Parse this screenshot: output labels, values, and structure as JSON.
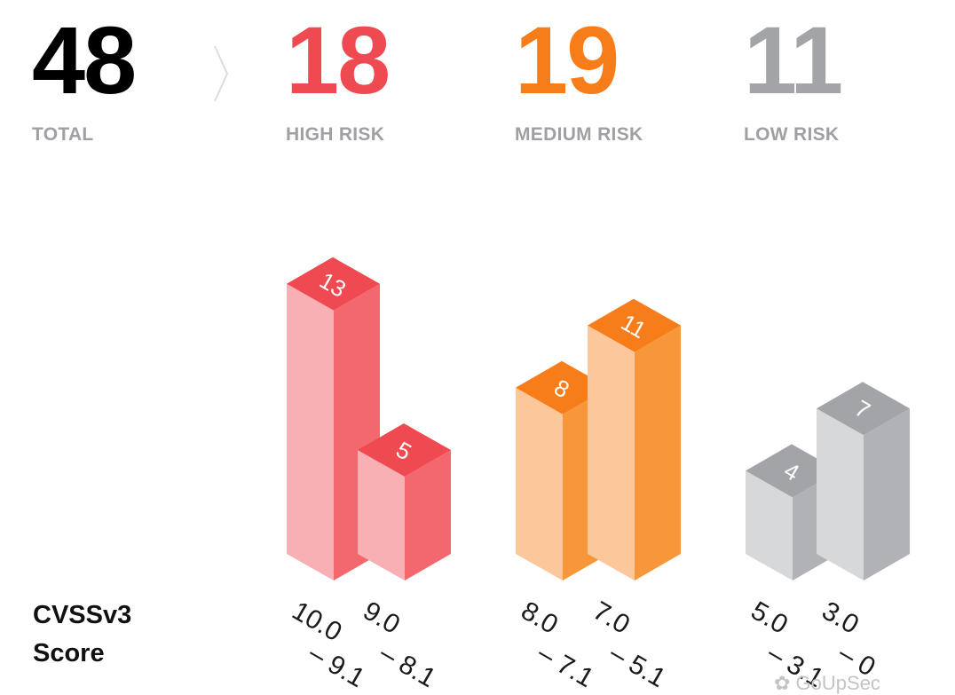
{
  "summary": {
    "total": {
      "value": "48",
      "label": "TOTAL",
      "color": "#000000"
    },
    "high": {
      "value": "18",
      "label": "HIGH RISK",
      "color": "#ef4a52"
    },
    "medium": {
      "value": "19",
      "label": "MEDIUM RISK",
      "color": "#f77d1a"
    },
    "low": {
      "value": "11",
      "label": "LOW RISK",
      "color": "#a3a4a8"
    }
  },
  "axis_label": {
    "line1": "CVSSv3",
    "line2": "Score"
  },
  "watermark": "GoUpSec",
  "chart_data": {
    "type": "bar",
    "style": "isometric-3d",
    "categories": [
      "10.0 – 9.1",
      "9.0 – 8.1",
      "8.0 – 7.1",
      "7.0 – 5.1",
      "5.0 – 3.1",
      "3.0 – 0"
    ],
    "values": [
      13,
      5,
      8,
      11,
      4,
      7
    ],
    "data_labels": [
      "13",
      "5",
      "8",
      "11",
      "4",
      "7"
    ],
    "groups": [
      {
        "name": "HIGH RISK",
        "indices": [
          0,
          1
        ],
        "colors": {
          "top": "#ef4a52",
          "front": "#f8b0b4",
          "side": "#f3686e"
        }
      },
      {
        "name": "MEDIUM RISK",
        "indices": [
          2,
          3
        ],
        "colors": {
          "top": "#f77d1a",
          "front": "#fcc89b",
          "side": "#f8963a"
        }
      },
      {
        "name": "LOW RISK",
        "indices": [
          4,
          5
        ],
        "colors": {
          "top": "#a3a4a8",
          "front": "#d7d8da",
          "side": "#b1b2b6"
        }
      }
    ],
    "xlabel": "CVSSv3 Score",
    "grid": false
  }
}
